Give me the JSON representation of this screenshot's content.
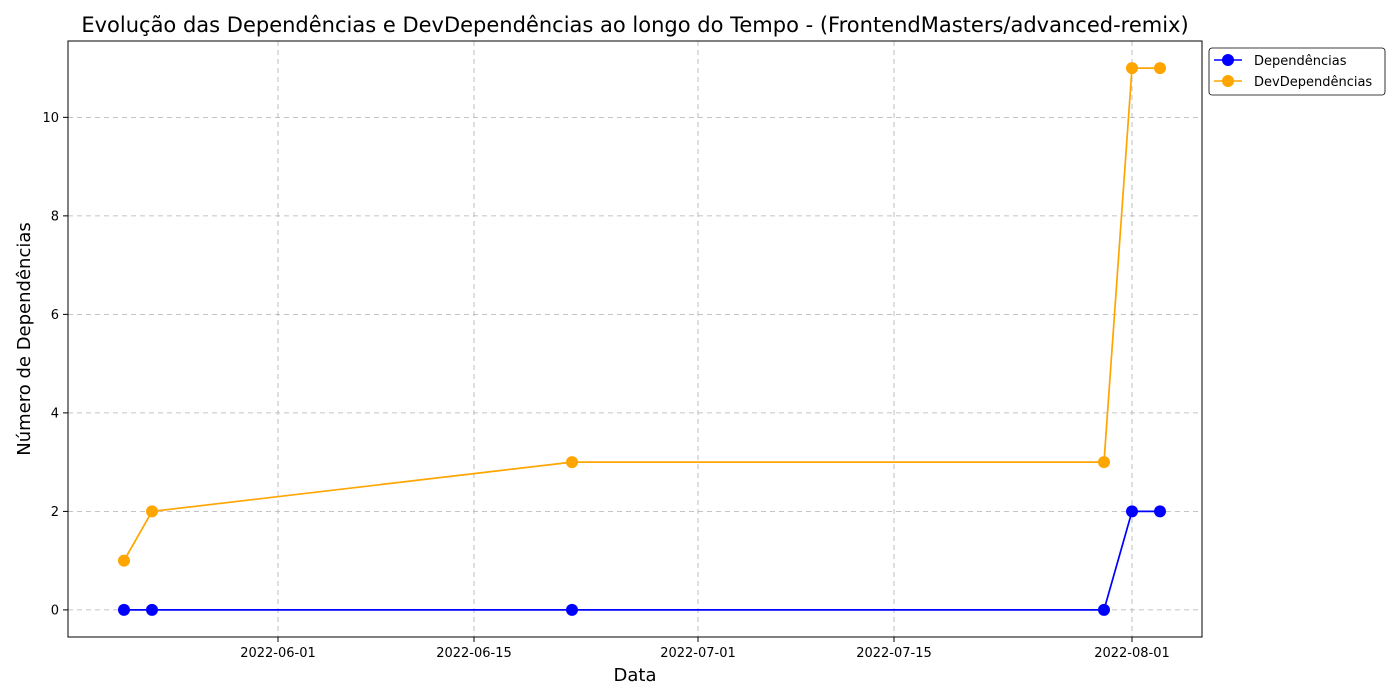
{
  "chart_data": {
    "type": "line",
    "title": "Evolução das Dependências e DevDependências ao longo do Tempo - (FrontendMasters/advanced-remix)",
    "xlabel": "Data",
    "ylabel": "Número de Dependências",
    "x": [
      "2022-05-21",
      "2022-05-23",
      "2022-06-22",
      "2022-07-30",
      "2022-08-01",
      "2022-08-03"
    ],
    "series": [
      {
        "name": "Dependências",
        "color": "#0000ff",
        "values": [
          0,
          0,
          0,
          0,
          2,
          2
        ]
      },
      {
        "name": "DevDependências",
        "color": "#ffa500",
        "values": [
          1,
          2,
          3,
          3,
          11,
          11
        ]
      }
    ],
    "x_ticks": [
      "2022-06-01",
      "2022-06-15",
      "2022-07-01",
      "2022-07-15",
      "2022-08-01"
    ],
    "y_ticks": [
      0,
      2,
      4,
      6,
      8,
      10
    ],
    "xlim": [
      "2022-05-17",
      "2022-08-06"
    ],
    "ylim": [
      -0.55,
      11.55
    ],
    "grid": true,
    "legend_position": "upper-right-outside"
  }
}
